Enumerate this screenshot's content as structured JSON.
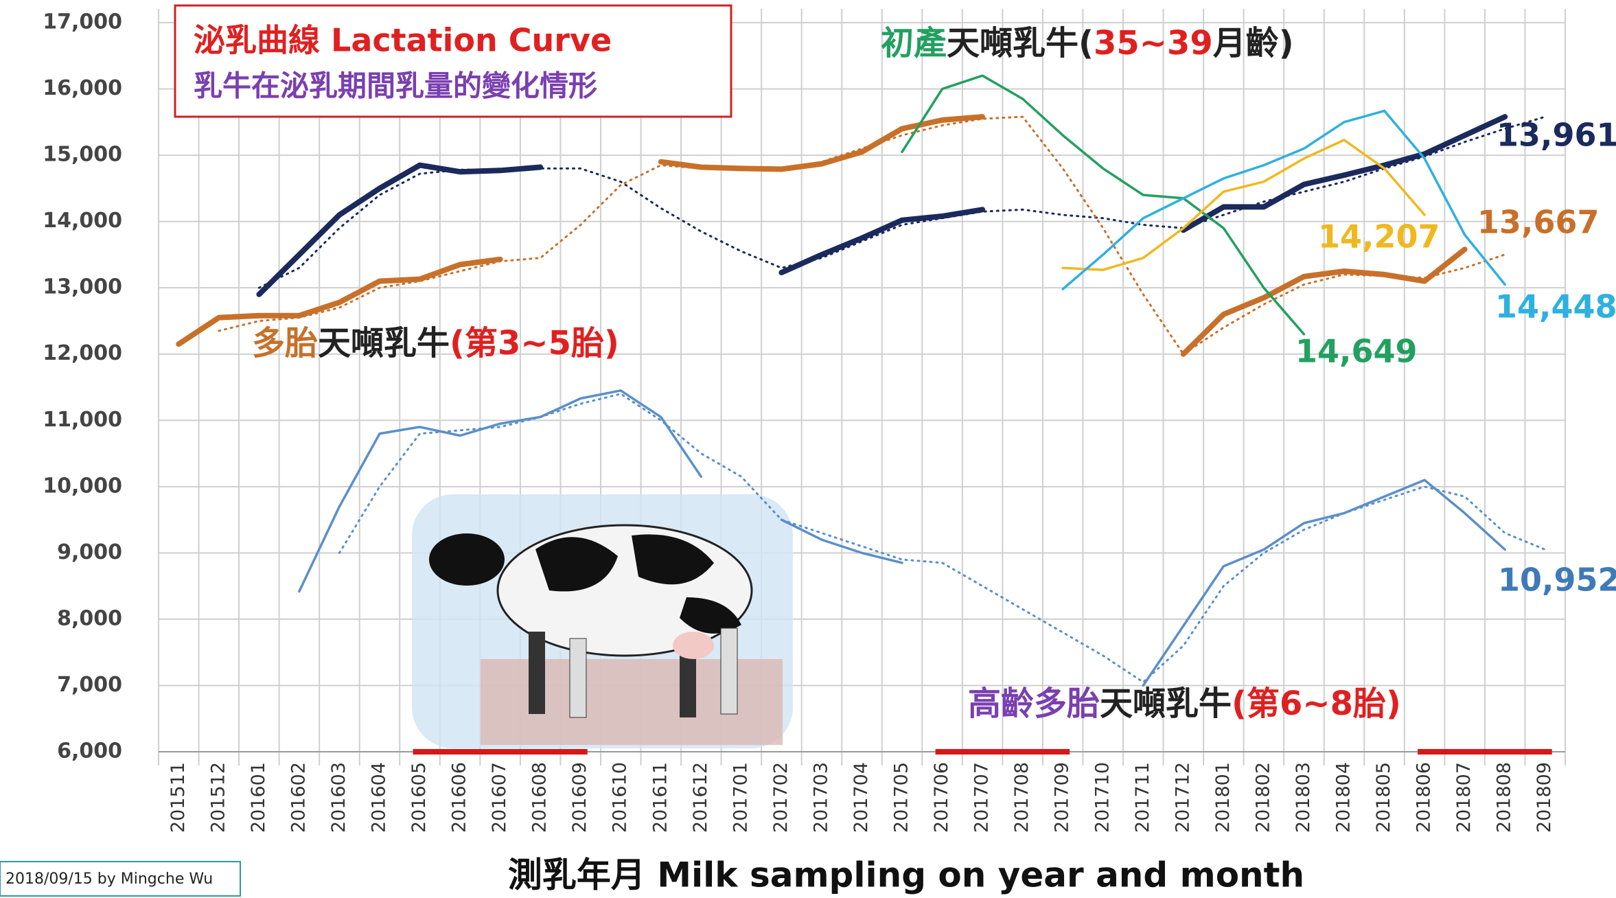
{
  "chart_data": {
    "type": "line",
    "title": "泌乳曲線 Lactation Curve",
    "subtitle": "乳牛在泌乳期間乳量的變化情形",
    "x_label": "測乳年月 Milk sampling on year and month",
    "footer": "2018/09/15 by Mingche Wu",
    "grid": true,
    "categories": [
      "201511",
      "201512",
      "201601",
      "201602",
      "201603",
      "201604",
      "201605",
      "201606",
      "201607",
      "201608",
      "201609",
      "201610",
      "201611",
      "201612",
      "201701",
      "201702",
      "201703",
      "201704",
      "201705",
      "201706",
      "201707",
      "201708",
      "201709",
      "201710",
      "201711",
      "201712",
      "201801",
      "201802",
      "201803",
      "201804",
      "201805",
      "201806",
      "201807",
      "201808",
      "201809"
    ],
    "ylim": [
      6000,
      17000
    ],
    "yticks": [
      {
        "value": 6000,
        "label": "6,000"
      },
      {
        "value": 7000,
        "label": "7,000"
      },
      {
        "value": 8000,
        "label": "8,000"
      },
      {
        "value": 9000,
        "label": "9,000"
      },
      {
        "value": 10000,
        "label": "10,000"
      },
      {
        "value": 11000,
        "label": "11,000"
      },
      {
        "value": 12000,
        "label": "12,000"
      },
      {
        "value": 13000,
        "label": "13,000"
      },
      {
        "value": 14000,
        "label": "14,000"
      },
      {
        "value": 15000,
        "label": "15,000"
      },
      {
        "value": 16000,
        "label": "16,000"
      },
      {
        "value": 17000,
        "label": "17,000"
      }
    ],
    "series": [
      {
        "color": "#1b2a5c",
        "width": 8,
        "dash": false,
        "values": [
          null,
          null,
          12900,
          13500,
          14100,
          14500,
          14850,
          14750,
          14770,
          14820,
          null,
          null,
          null,
          null,
          null,
          13230,
          13500,
          13750,
          14020,
          14080,
          14180,
          null,
          null,
          null,
          null,
          13870,
          14220,
          14220,
          14560,
          14700,
          14850,
          15020,
          15300,
          15580,
          null
        ]
      },
      {
        "color": "#1b2a5c",
        "width": 3,
        "dash": true,
        "values": [
          null,
          null,
          13000,
          13300,
          13900,
          14400,
          14720,
          14780,
          14790,
          14800,
          14800,
          14600,
          14200,
          13850,
          13550,
          13300,
          13450,
          13700,
          13950,
          14050,
          14150,
          14180,
          14100,
          14050,
          13950,
          13900,
          14100,
          14300,
          14450,
          14600,
          14800,
          14980,
          15200,
          15400,
          15580
        ]
      },
      {
        "color": "#c8702a",
        "width": 8,
        "dash": false,
        "values": [
          12150,
          12550,
          12580,
          12580,
          12780,
          13100,
          13130,
          13350,
          13430,
          null,
          null,
          null,
          14900,
          14820,
          14800,
          14790,
          14870,
          15050,
          15400,
          15530,
          15580,
          null,
          null,
          null,
          null,
          12000,
          12600,
          12850,
          13170,
          13250,
          13200,
          13100,
          13580,
          null,
          null
        ]
      },
      {
        "color": "#c8702a",
        "width": 3,
        "dash": true,
        "values": [
          null,
          12350,
          12500,
          12550,
          12700,
          13000,
          13100,
          13250,
          13400,
          13450,
          13950,
          14550,
          14850,
          14800,
          14790,
          14780,
          14900,
          15100,
          15300,
          15450,
          15550,
          15580,
          14800,
          13900,
          12900,
          12000,
          12400,
          12750,
          13050,
          13200,
          13180,
          13150,
          13300,
          13500,
          null
        ]
      },
      {
        "color": "#22a060",
        "width": 3.5,
        "dash": false,
        "values": [
          null,
          null,
          null,
          null,
          null,
          null,
          null,
          null,
          null,
          null,
          null,
          null,
          null,
          null,
          null,
          null,
          null,
          null,
          15050,
          16000,
          16200,
          15850,
          15300,
          14800,
          14400,
          14350,
          13900,
          13000,
          12300,
          null,
          null,
          null,
          null,
          null,
          null
        ]
      },
      {
        "color": "#f0b820",
        "width": 3.5,
        "dash": false,
        "values": [
          null,
          null,
          null,
          null,
          null,
          null,
          null,
          null,
          null,
          null,
          null,
          null,
          null,
          null,
          null,
          null,
          null,
          null,
          null,
          null,
          null,
          null,
          13300,
          13270,
          13450,
          13900,
          14450,
          14600,
          14950,
          15230,
          14800,
          14100,
          null,
          null,
          null
        ]
      },
      {
        "color": "#2eb0e0",
        "width": 3.5,
        "dash": false,
        "values": [
          null,
          null,
          null,
          null,
          null,
          null,
          null,
          null,
          null,
          null,
          null,
          null,
          null,
          null,
          null,
          null,
          null,
          null,
          null,
          null,
          null,
          null,
          12980,
          13500,
          14050,
          14350,
          14650,
          14850,
          15100,
          15500,
          15670,
          14950,
          13800,
          13050,
          null
        ]
      },
      {
        "color": "#5b8fc8",
        "width": 3.5,
        "dash": false,
        "values": [
          null,
          null,
          null,
          8420,
          9700,
          10800,
          10900,
          10770,
          10950,
          11050,
          11330,
          11450,
          11050,
          10150,
          null,
          9500,
          9200,
          9000,
          8850,
          null,
          null,
          null,
          null,
          null,
          7000,
          7900,
          8800,
          9050,
          9450,
          9600,
          9850,
          10100,
          9600,
          9050,
          null
        ]
      },
      {
        "color": "#5b8fc8",
        "width": 3,
        "dash": true,
        "values": [
          null,
          null,
          null,
          null,
          9000,
          10000,
          10800,
          10850,
          10900,
          11050,
          11250,
          11400,
          11000,
          10500,
          10150,
          9500,
          9300,
          9100,
          8900,
          8850,
          8500,
          8150,
          7800,
          7450,
          7050,
          7600,
          8500,
          9000,
          9350,
          9600,
          9800,
          10000,
          9850,
          9300,
          9050
        ]
      }
    ],
    "annotations": [
      {
        "parts": [
          {
            "text": "初產",
            "color": "#22a060"
          },
          {
            "text": "天噸乳牛(",
            "color": "#222222"
          },
          {
            "text": "35~39",
            "color": "#e02020"
          },
          {
            "text": "月齡)",
            "color": "#222222"
          }
        ]
      },
      {
        "parts": [
          {
            "text": "多胎",
            "color": "#c8702a"
          },
          {
            "text": "天噸乳牛",
            "color": "#222222"
          },
          {
            "text": "(第3~5胎)",
            "color": "#e02020"
          }
        ]
      },
      {
        "parts": [
          {
            "text": "高齡多胎",
            "color": "#7a3fb0"
          },
          {
            "text": "天噸乳牛",
            "color": "#222222"
          },
          {
            "text": "(第6~8胎)",
            "color": "#e02020"
          }
        ]
      }
    ],
    "end_labels": [
      {
        "text": "13,961",
        "color": "#1b2a5c"
      },
      {
        "text": "13,667",
        "color": "#c8702a"
      },
      {
        "text": "14,207",
        "color": "#f0b820"
      },
      {
        "text": "14,448",
        "color": "#2eb0e0"
      },
      {
        "text": "14,649",
        "color": "#22a060"
      },
      {
        "text": "10,952",
        "color": "#3f7ab8"
      }
    ]
  }
}
